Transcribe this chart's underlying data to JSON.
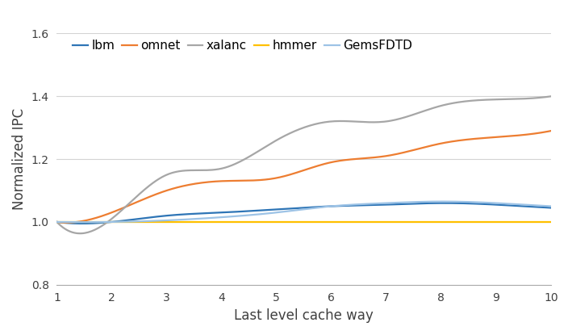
{
  "x": [
    1,
    2,
    3,
    4,
    5,
    6,
    7,
    8,
    9,
    10
  ],
  "series": {
    "lbm": {
      "values": [
        1.0,
        1.0,
        1.02,
        1.03,
        1.04,
        1.05,
        1.055,
        1.06,
        1.055,
        1.045
      ],
      "color": "#2e75b6",
      "label": "lbm"
    },
    "omnet": {
      "values": [
        1.0,
        1.03,
        1.1,
        1.13,
        1.14,
        1.19,
        1.21,
        1.25,
        1.27,
        1.29
      ],
      "color": "#ed7d31",
      "label": "omnet"
    },
    "xalanc": {
      "values": [
        1.0,
        1.01,
        1.15,
        1.17,
        1.26,
        1.32,
        1.32,
        1.37,
        1.39,
        1.4
      ],
      "color": "#a6a6a6",
      "label": "xalanc"
    },
    "hmmer": {
      "values": [
        1.0,
        1.0,
        1.0,
        1.0,
        1.0,
        1.0,
        1.0,
        1.0,
        1.0,
        1.0
      ],
      "color": "#ffc000",
      "label": "hmmer"
    },
    "GemsFDTD": {
      "values": [
        1.0,
        1.0,
        1.005,
        1.015,
        1.03,
        1.05,
        1.06,
        1.065,
        1.06,
        1.05
      ],
      "color": "#9dc3e6",
      "label": "GemsFDTD"
    }
  },
  "xlabel": "Last level cache way",
  "ylabel": "Normalized IPC",
  "ylim": [
    0.8,
    1.6
  ],
  "yticks": [
    0.8,
    1.0,
    1.2,
    1.4,
    1.6
  ],
  "xticks": [
    1,
    2,
    3,
    4,
    5,
    6,
    7,
    8,
    9,
    10
  ],
  "background_color": "#ffffff",
  "grid_color": "#d3d3d3",
  "axis_fontsize": 12,
  "legend_fontsize": 11,
  "line_width": 1.6
}
